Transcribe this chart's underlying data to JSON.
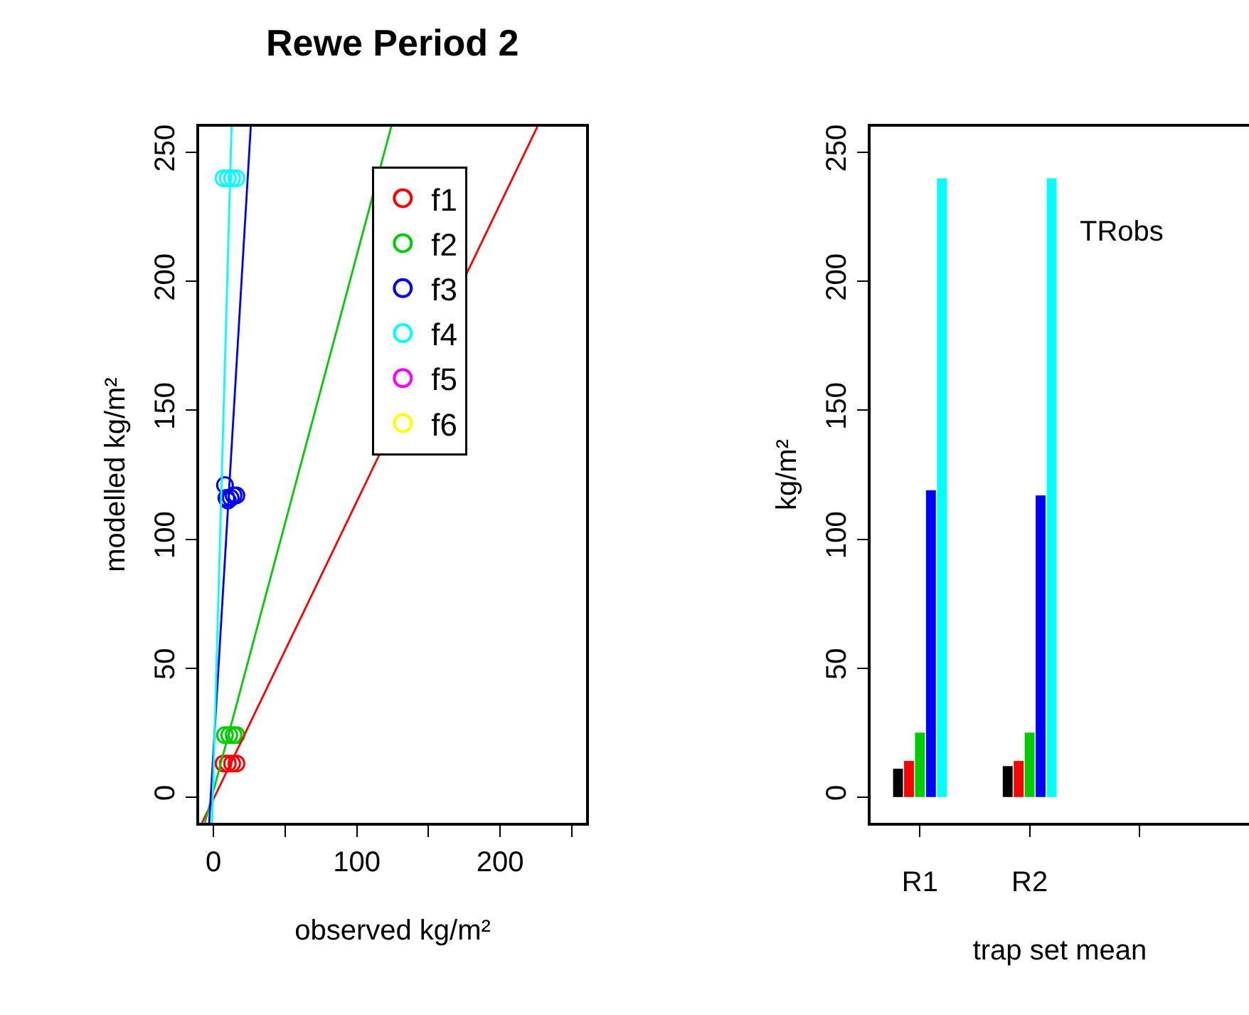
{
  "chart_data": [
    {
      "type": "scatter",
      "title": "Rewe Period 2",
      "xlabel": "observed kg/m²",
      "ylabel": "modelled kg/m²",
      "xlim": [
        -10,
        260
      ],
      "ylim": [
        -10,
        260
      ],
      "xticks": [
        0,
        {
          "value": 50,
          "label": null
        },
        100,
        {
          "value": 150,
          "label": null
        },
        200,
        {
          "value": 250,
          "label": null
        }
      ],
      "yticks": [
        0,
        50,
        100,
        150,
        200,
        250
      ],
      "legend": "top right",
      "marker": "circle",
      "series": [
        {
          "name": "f1",
          "color": "#ff0000",
          "x": [
            7,
            10,
            13,
            16
          ],
          "values": [
            13,
            13,
            13,
            13
          ]
        },
        {
          "name": "f2",
          "color": "#00cd00",
          "x": [
            8,
            11,
            14,
            16
          ],
          "values": [
            24,
            24,
            24,
            24
          ]
        },
        {
          "name": "f3",
          "color": "#0000ff",
          "x": [
            8,
            9,
            10,
            12,
            14,
            16
          ],
          "values": [
            121,
            116,
            115,
            116,
            117,
            117
          ]
        },
        {
          "name": "f4",
          "color": "#00ffff",
          "x": [
            7,
            10,
            13,
            16
          ],
          "values": [
            240,
            240,
            240,
            240
          ]
        },
        {
          "name": "f5",
          "color": "#ff00ff"
        },
        {
          "name": "f6",
          "color": "#ffff00"
        },
        {
          "type": "line",
          "marker": "none",
          "color": "#ff0000",
          "x": [
            -8,
            226
          ],
          "values": [
            -10,
            260
          ]
        },
        {
          "type": "line",
          "marker": "none",
          "color": "#00cd00",
          "x": [
            -6,
            124
          ],
          "values": [
            -10,
            260
          ]
        },
        {
          "type": "line",
          "marker": "none",
          "color": "#0000ff",
          "x": [
            -3,
            26
          ],
          "values": [
            -10,
            260
          ]
        },
        {
          "type": "line",
          "marker": "none",
          "color": "#00ffff",
          "x": [
            -1,
            12.6
          ],
          "values": [
            -10,
            260
          ]
        }
      ]
    },
    {
      "type": "bar",
      "xlabel": "trap set mean",
      "ylabel": "kg/m²",
      "categories": [
        "R1",
        "R2",
        null
      ],
      "ylim": [
        -10,
        260
      ],
      "yticks": [
        0,
        50,
        100,
        150,
        200,
        250
      ],
      "legend": false,
      "annotations": [
        "TRobs"
      ],
      "series": [
        {
          "color": "#000000",
          "values": [
            11,
            12,
            null
          ]
        },
        {
          "color": "#ff0000",
          "values": [
            14,
            14,
            null
          ]
        },
        {
          "color": "#00cd00",
          "values": [
            25,
            25,
            null
          ]
        },
        {
          "color": "#0000ff",
          "values": [
            119,
            117,
            null
          ]
        },
        {
          "color": "#00ffff",
          "values": [
            240,
            240,
            null
          ]
        }
      ]
    }
  ]
}
